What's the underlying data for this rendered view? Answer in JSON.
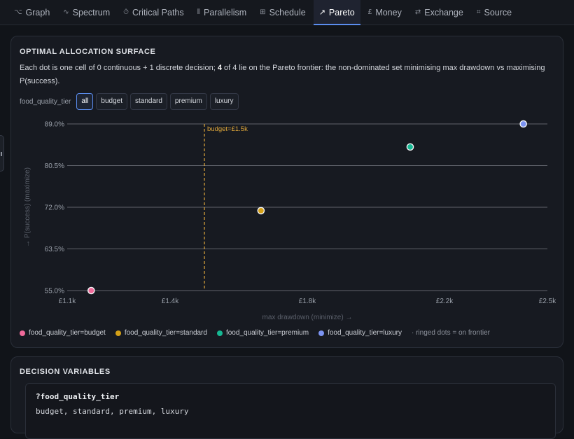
{
  "tabs": [
    {
      "icon": "⌥",
      "label": "Graph",
      "name": "tab-graph",
      "active": false
    },
    {
      "icon": "∿",
      "label": "Spectrum",
      "name": "tab-spectrum",
      "active": false
    },
    {
      "icon": "⏱",
      "label": "Critical Paths",
      "name": "tab-critical-paths",
      "active": false
    },
    {
      "icon": "⦀",
      "label": "Parallelism",
      "name": "tab-parallelism",
      "active": false
    },
    {
      "icon": "⊞",
      "label": "Schedule",
      "name": "tab-schedule",
      "active": false
    },
    {
      "icon": "↗",
      "label": "Pareto",
      "name": "tab-pareto",
      "active": true
    },
    {
      "icon": "£",
      "label": "Money",
      "name": "tab-money",
      "active": false
    },
    {
      "icon": "⇄",
      "label": "Exchange",
      "name": "tab-exchange",
      "active": false
    },
    {
      "icon": "⌗",
      "label": "Source",
      "name": "tab-source",
      "active": false
    }
  ],
  "surface": {
    "title": "OPTIMAL ALLOCATION SURFACE",
    "desc_pre": "Each dot is one cell of 0 continuous + 1 discrete decision; ",
    "desc_count": "4",
    "desc_mid": " of 4 lie on the Pareto frontier: the non-dominated set minimising max drawdown vs maximising P(success).",
    "filter_label": "food_quality_tier",
    "filter_options": [
      "all",
      "budget",
      "standard",
      "premium",
      "luxury"
    ],
    "filter_selected": "all"
  },
  "chart_data": {
    "type": "scatter",
    "xlabel": "max drawdown (minimize) →",
    "ylabel": "→ P(success) (maximize)",
    "xlim": [
      1100,
      2500
    ],
    "ylim": [
      55.0,
      89.0
    ],
    "x_ticks": [
      1100,
      1400,
      1800,
      2200,
      2500
    ],
    "x_tick_labels": [
      "£1.1k",
      "£1.4k",
      "£1.8k",
      "£2.2k",
      "£2.5k"
    ],
    "y_ticks": [
      55.0,
      63.5,
      72.0,
      80.5,
      89.0
    ],
    "y_tick_labels": [
      "55.0%",
      "63.5%",
      "72.0%",
      "80.5%",
      "89.0%"
    ],
    "grid": "horizontal",
    "budget_line": {
      "x": 1500,
      "label": "budget=£1.5k",
      "color": "#e0a83a"
    },
    "series": [
      {
        "name": "food_quality_tier=budget",
        "color": "#f06a9a",
        "x": 1170,
        "y": 55.0
      },
      {
        "name": "food_quality_tier=standard",
        "color": "#d4a017",
        "x": 1665,
        "y": 71.3
      },
      {
        "name": "food_quality_tier=premium",
        "color": "#16b893",
        "x": 2100,
        "y": 84.3
      },
      {
        "name": "food_quality_tier=luxury",
        "color": "#7b93f2",
        "x": 2430,
        "y": 89.0
      }
    ],
    "legend_note": "· ringed dots = on frontier"
  },
  "decision": {
    "title": "DECISION VARIABLES",
    "var_name": "?food_quality_tier",
    "var_values": "budget, standard, premium, luxury"
  }
}
